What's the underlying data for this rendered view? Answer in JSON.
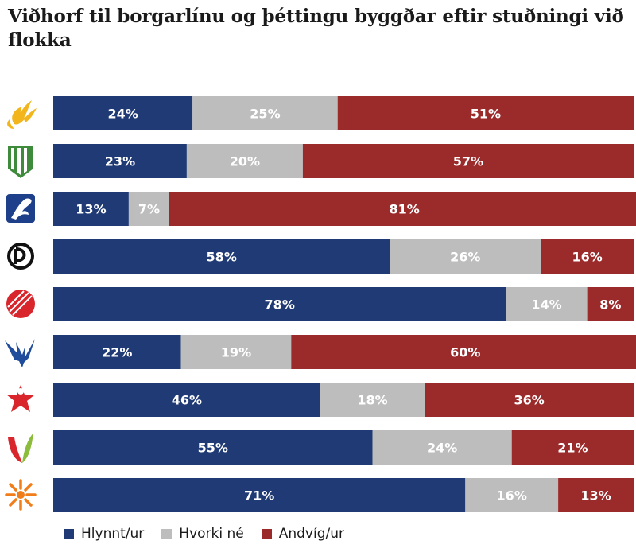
{
  "title": "Viðhorf til borgarlínu og þéttingu byggðar eftir stuðningi við flokka",
  "colors": {
    "support": "#1f3a74",
    "neutral": "#bdbdbd",
    "oppose": "#9b2b2b"
  },
  "chart_data": {
    "type": "bar",
    "orientation": "horizontal",
    "stacked": true,
    "xlim": [
      0,
      100
    ],
    "categories": [
      "party-logo-1",
      "party-logo-2",
      "party-logo-3",
      "party-logo-4",
      "party-logo-5",
      "party-logo-6",
      "party-logo-7",
      "party-logo-8",
      "party-logo-9"
    ],
    "series": [
      {
        "name": "Hlynnt/ur",
        "color": "#1f3a74",
        "values": [
          24,
          23,
          13,
          58,
          78,
          22,
          46,
          55,
          71
        ]
      },
      {
        "name": "Hvorki né",
        "color": "#bdbdbd",
        "values": [
          25,
          20,
          7,
          26,
          14,
          19,
          18,
          24,
          16
        ]
      },
      {
        "name": "Andvíg/ur",
        "color": "#9b2b2b",
        "values": [
          51,
          57,
          81,
          16,
          8,
          60,
          36,
          21,
          13
        ]
      }
    ],
    "value_suffix": "%",
    "legend_position": "bottom-left"
  }
}
